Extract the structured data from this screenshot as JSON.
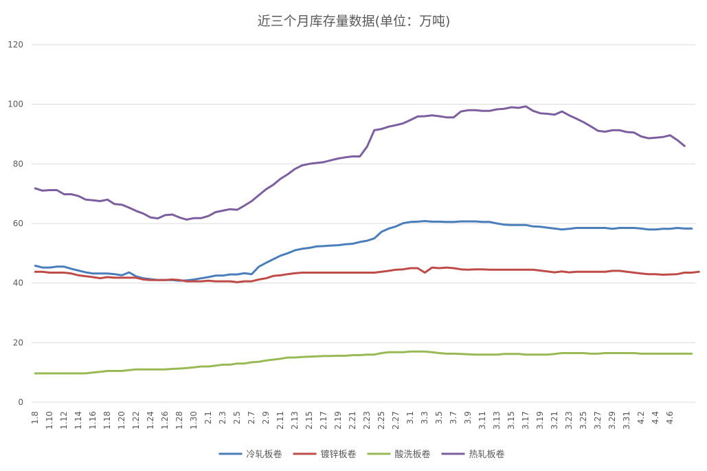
{
  "chart_data": {
    "type": "line",
    "title": "近三个月库存量数据(单位：万吨)",
    "xlabel": "",
    "ylabel": "",
    "ylim": [
      0,
      120
    ],
    "yticks": [
      0,
      20,
      40,
      60,
      80,
      100,
      120
    ],
    "grid": "horizontal",
    "legend_position": "bottom",
    "x_tick_labels": [
      "1.8",
      "1.10",
      "1.12",
      "1.14",
      "1.16",
      "1.18",
      "1.20",
      "1.22",
      "1.24",
      "1.26",
      "1.28",
      "1.30",
      "2.1",
      "2.3",
      "2.5",
      "2.7",
      "2.9",
      "2.11",
      "2.13",
      "2.15",
      "2.17",
      "2.19",
      "2.21",
      "2.23",
      "2.25",
      "2.27",
      "3.1",
      "3.3",
      "3.5",
      "3.7",
      "3.9",
      "3.11",
      "3.13",
      "3.15",
      "3.17",
      "3.19",
      "3.21",
      "3.23",
      "3.25",
      "3.27",
      "3.29",
      "3.31",
      "4.2",
      "4.4",
      "4.6"
    ],
    "series": [
      {
        "name": "冷轧板卷",
        "color": "#4a7ebb",
        "values": [
          45.8,
          45.2,
          45.2,
          45.5,
          45.5,
          44.8,
          44.2,
          43.6,
          43.2,
          43.2,
          43.2,
          43.0,
          42.6,
          43.6,
          42.2,
          41.6,
          41.3,
          41.0,
          41.0,
          41.0,
          40.8,
          40.9,
          41.2,
          41.6,
          42.0,
          42.5,
          42.5,
          42.9,
          42.9,
          43.3,
          43.0,
          45.5,
          46.8,
          48.0,
          49.2,
          50.0,
          51.0,
          51.5,
          51.8,
          52.3,
          52.4,
          52.6,
          52.7,
          53.0,
          53.2,
          53.8,
          54.2,
          55.0,
          57.2,
          58.3,
          59.0,
          60.1,
          60.5,
          60.6,
          60.8,
          60.6,
          60.6,
          60.5,
          60.5,
          60.7,
          60.7,
          60.7,
          60.5,
          60.5,
          60.0,
          59.6,
          59.5,
          59.5,
          59.5,
          59.0,
          58.9,
          58.6,
          58.3,
          58.0,
          58.2,
          58.5,
          58.5,
          58.5,
          58.5,
          58.5,
          58.2,
          58.5,
          58.5,
          58.5,
          58.3,
          58.0,
          58.0,
          58.2,
          58.2,
          58.5,
          58.3,
          58.3
        ]
      },
      {
        "name": "镀锌板卷",
        "color": "#be4b48",
        "values": [
          43.8,
          43.8,
          43.5,
          43.5,
          43.5,
          43.2,
          42.6,
          42.3,
          42.0,
          41.6,
          42.0,
          41.8,
          41.8,
          41.8,
          41.8,
          41.2,
          41.0,
          41.0,
          41.0,
          41.2,
          41.0,
          40.6,
          40.6,
          40.6,
          40.8,
          40.6,
          40.6,
          40.6,
          40.3,
          40.6,
          40.6,
          41.2,
          41.6,
          42.4,
          42.6,
          43.0,
          43.3,
          43.5,
          43.5,
          43.5,
          43.5,
          43.5,
          43.5,
          43.5,
          43.5,
          43.5,
          43.5,
          43.5,
          43.8,
          44.1,
          44.5,
          44.6,
          45.0,
          45.0,
          43.5,
          45.2,
          45.0,
          45.2,
          45.0,
          44.6,
          44.5,
          44.6,
          44.6,
          44.5,
          44.5,
          44.5,
          44.5,
          44.5,
          44.5,
          44.5,
          44.2,
          43.9,
          43.6,
          43.9,
          43.6,
          43.8,
          43.8,
          43.8,
          43.8,
          43.8,
          44.1,
          44.1,
          43.8,
          43.5,
          43.2,
          43.0,
          43.0,
          42.8,
          42.9,
          43.0,
          43.5,
          43.5,
          43.8
        ]
      },
      {
        "name": "酸洗板卷",
        "color": "#98b954",
        "values": [
          9.7,
          9.7,
          9.7,
          9.7,
          9.7,
          9.7,
          9.7,
          9.7,
          10.0,
          10.2,
          10.5,
          10.5,
          10.5,
          10.8,
          11.0,
          11.0,
          11.0,
          11.0,
          11.0,
          11.2,
          11.3,
          11.5,
          11.7,
          12.0,
          12.0,
          12.3,
          12.6,
          12.6,
          13.0,
          13.0,
          13.4,
          13.6,
          14.0,
          14.3,
          14.6,
          15.0,
          15.0,
          15.2,
          15.3,
          15.4,
          15.5,
          15.5,
          15.6,
          15.6,
          15.8,
          15.8,
          16.0,
          16.0,
          16.5,
          16.8,
          16.8,
          16.8,
          17.0,
          17.0,
          17.0,
          16.8,
          16.5,
          16.3,
          16.3,
          16.2,
          16.1,
          16.0,
          16.0,
          16.0,
          16.0,
          16.2,
          16.2,
          16.2,
          16.0,
          16.0,
          16.0,
          16.0,
          16.2,
          16.5,
          16.5,
          16.5,
          16.5,
          16.3,
          16.3,
          16.5,
          16.5,
          16.5,
          16.5,
          16.5,
          16.3,
          16.3,
          16.3,
          16.3,
          16.3,
          16.3,
          16.3,
          16.3
        ]
      },
      {
        "name": "热轧板卷",
        "color": "#7d5fa0",
        "values": [
          71.8,
          71.0,
          71.2,
          71.2,
          69.8,
          69.8,
          69.2,
          68.0,
          67.8,
          67.5,
          68.0,
          66.5,
          66.3,
          65.3,
          64.2,
          63.3,
          62.0,
          61.7,
          62.8,
          63.0,
          62.0,
          61.3,
          61.8,
          61.8,
          62.5,
          63.8,
          64.3,
          64.8,
          64.6,
          66.0,
          67.5,
          69.5,
          71.5,
          73.0,
          75.0,
          76.5,
          78.3,
          79.5,
          80.0,
          80.3,
          80.6,
          81.2,
          81.8,
          82.2,
          82.5,
          82.5,
          85.8,
          91.3,
          91.7,
          92.5,
          93.0,
          93.6,
          94.7,
          95.9,
          96.0,
          96.3,
          96.0,
          95.6,
          95.6,
          97.6,
          98.0,
          98.0,
          97.8,
          97.8,
          98.3,
          98.5,
          99.0,
          98.8,
          99.3,
          97.8,
          97.0,
          96.8,
          96.5,
          97.6,
          96.3,
          95.2,
          94.0,
          92.6,
          91.1,
          90.8,
          91.3,
          91.3,
          90.7,
          90.5,
          89.2,
          88.6,
          88.8,
          89.0,
          89.6,
          88.0,
          86.0
        ]
      }
    ]
  }
}
